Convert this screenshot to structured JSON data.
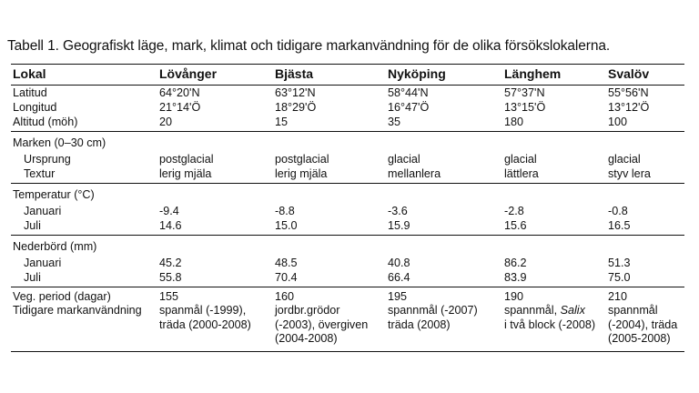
{
  "caption": "Tabell 1. Geografiskt läge, mark, klimat och tidigare markanvändning för de olika försökslokalerna.",
  "header": [
    "Lokal",
    "Lövånger",
    "Bjästa",
    "Nyköping",
    "Länghem",
    "Svalöv"
  ],
  "rows": {
    "latitud": [
      "Latitud",
      "64°20'N",
      "63°12'N",
      "58°44'N",
      "57°37'N",
      "55°56'N"
    ],
    "longitud": [
      "Longitud",
      "21°14'Ö",
      "18°29'Ö",
      "16°47'Ö",
      "13°15'Ö",
      "13°12'Ö"
    ],
    "altitud": [
      "Altitud (möh)",
      "20",
      "15",
      "35",
      "180",
      "100"
    ],
    "marken": [
      "Marken (0–30 cm)"
    ],
    "ursprung": [
      "Ursprung",
      "postglacial",
      "postglacial",
      "glacial",
      "glacial",
      "glacial"
    ],
    "textur": [
      "Textur",
      "lerig mjäla",
      "lerig mjäla",
      "mellanlera",
      "lättlera",
      "styv lera"
    ],
    "temperatur": [
      "Temperatur (°C)"
    ],
    "temp_jan": [
      "Januari",
      "-9.4",
      "-8.8",
      "-3.6",
      "-2.8",
      "-0.8"
    ],
    "temp_jul": [
      "Juli",
      "14.6",
      "15.0",
      "15.9",
      "15.6",
      "16.5"
    ],
    "nederbord": [
      "Nederbörd (mm)"
    ],
    "ned_jan": [
      "Januari",
      "45.2",
      "48.5",
      "40.8",
      "86.2",
      "51.3"
    ],
    "ned_jul": [
      "Juli",
      "55.8",
      "70.4",
      "66.4",
      "83.9",
      "75.0"
    ],
    "veg": [
      "Veg. period (dagar)",
      "155",
      "160",
      "195",
      "190",
      "210"
    ],
    "tidigare_label": "Tidigare markanvändning",
    "tidigare": {
      "lovanger": [
        "spanmål (-1999),",
        "träda (2000-2008)"
      ],
      "bjasta": [
        "jordbr.grödor",
        "(-2003), övergiven",
        "(2004-2008)"
      ],
      "nykoping": [
        "spannmål (-2007)",
        "träda (2008)"
      ],
      "langhem_a": "spannmål, ",
      "langhem_italic": "Salix",
      "langhem_b": "i två block (-2008)",
      "svalov": [
        "spannmål",
        "(-2004), träda",
        "(2005-2008)"
      ]
    }
  }
}
